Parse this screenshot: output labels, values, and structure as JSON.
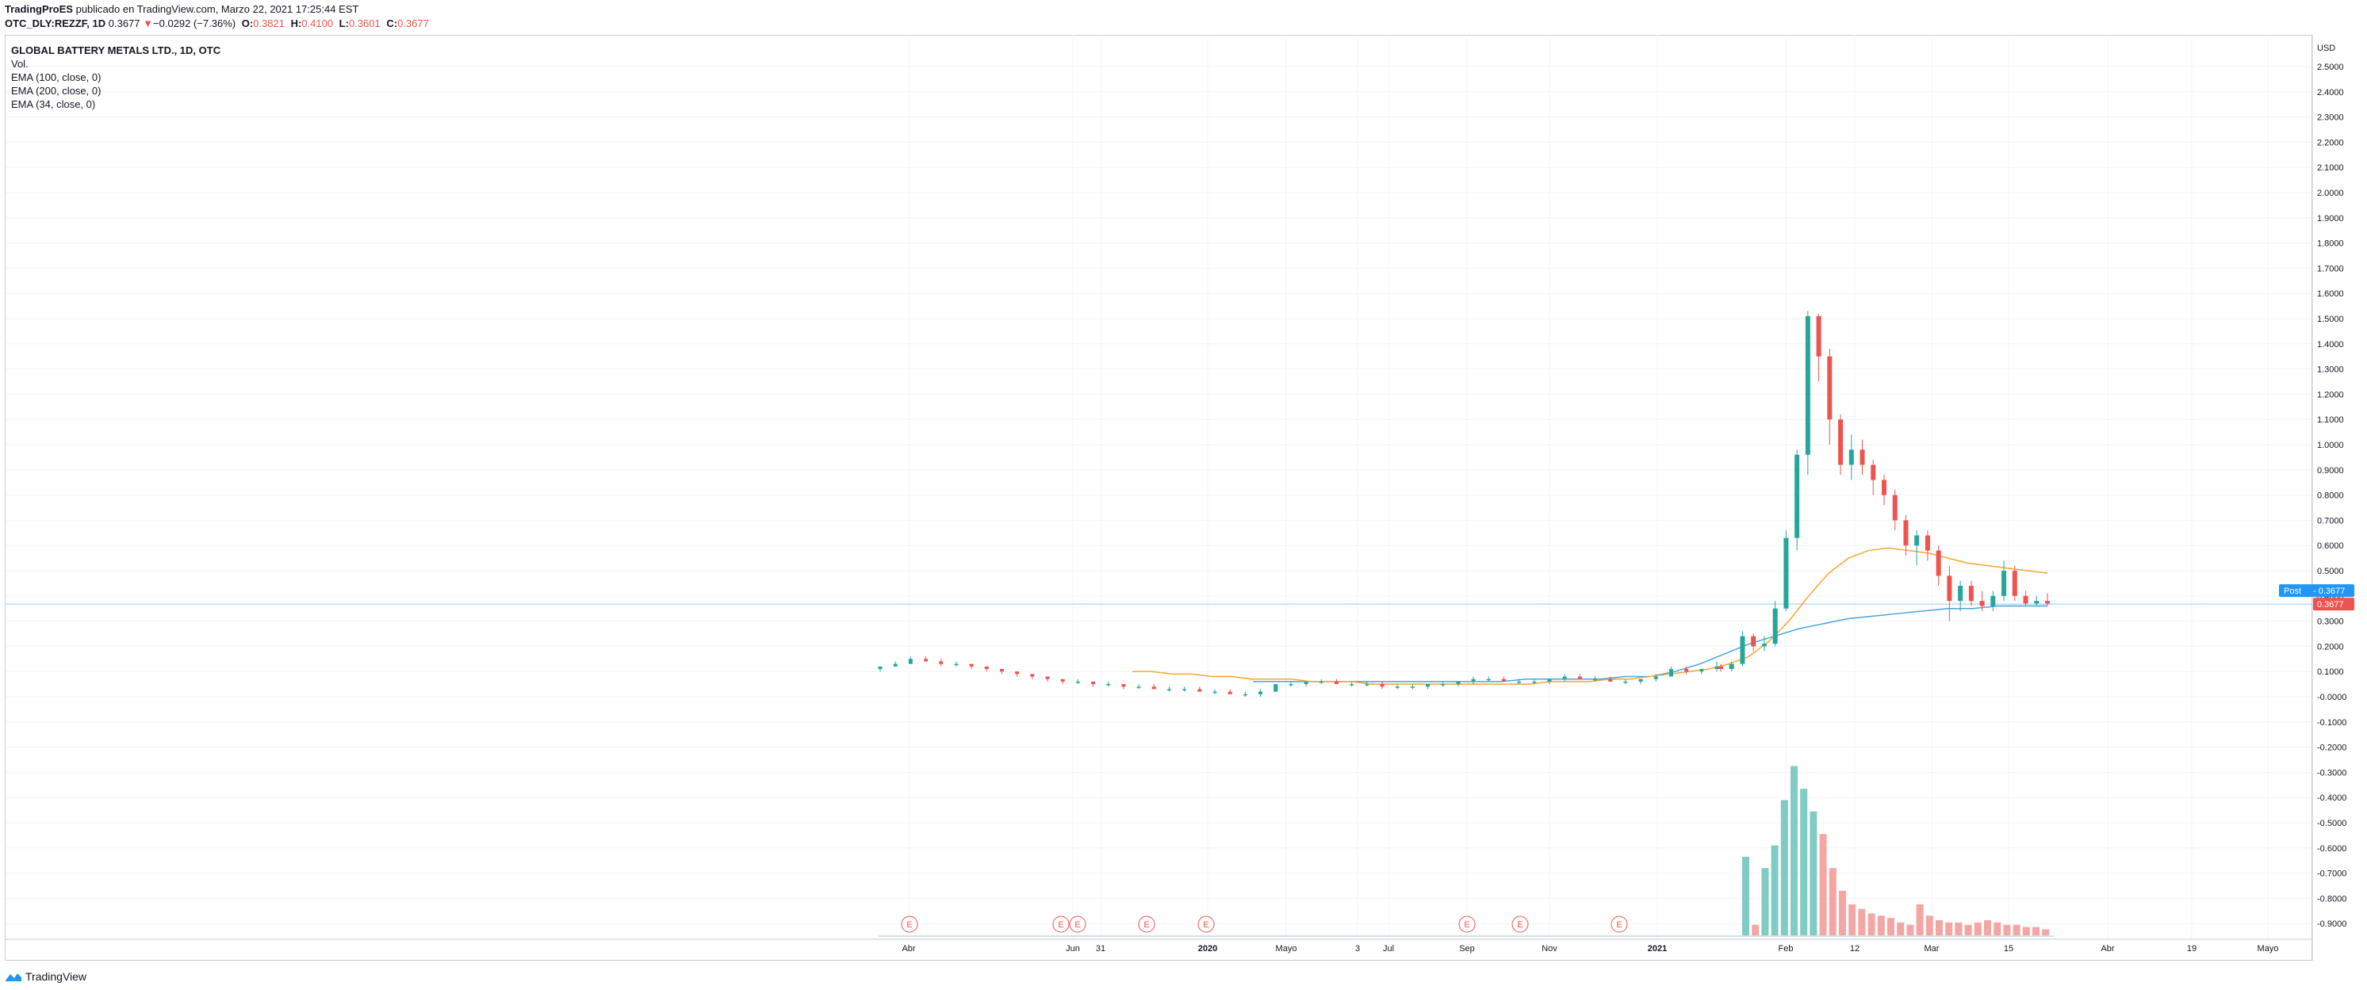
{
  "header": {
    "publisher": "TradingProES",
    "published_text": "publicado en TradingView.com, Marzo 22, 2021 17:25:44 EST",
    "symbol": "OTC_DLY:REZZF, 1D",
    "last": "0.3677",
    "change_arrow": "▼",
    "change": "−0.0292 (−7.36%)",
    "o_label": "O:",
    "o": "0.3821",
    "h_label": "H:",
    "h": "0.4100",
    "l_label": "L:",
    "l": "0.3601",
    "c_label": "C:",
    "c": "0.3677"
  },
  "legend": {
    "title": "GLOBAL BATTERY METALS LTD., 1D, OTC",
    "vol": "Vol.",
    "ema100": "EMA (100, close, 0)",
    "ema200": "EMA (200, close, 0)",
    "ema34": "EMA (34, close, 0)"
  },
  "footer": {
    "brand": "TradingView"
  },
  "colors": {
    "up": "#26a69a",
    "down": "#ef5350",
    "ema_orange": "#f7a531",
    "ema_blue": "#4aa3df",
    "badge_blue": "#2196f3"
  },
  "chart_data": {
    "type": "candlestick",
    "currency_label": "USD",
    "y_ticks": [
      "2.5000",
      "2.4000",
      "2.3000",
      "2.2000",
      "2.1000",
      "2.0000",
      "1.9000",
      "1.8000",
      "1.7000",
      "1.6000",
      "1.5000",
      "1.4000",
      "1.3000",
      "1.2000",
      "1.1000",
      "1.0000",
      "0.9000",
      "0.8000",
      "0.7000",
      "0.6000",
      "0.5000",
      "0.4000",
      "0.3000",
      "0.2000",
      "0.1000",
      "-0.0000",
      "-0.1000",
      "-0.2000",
      "-0.3000",
      "-0.4000",
      "-0.5000",
      "-0.6000",
      "-0.7000",
      "-0.8000",
      "-0.9000"
    ],
    "x_ticks": [
      "Abr",
      "Jun",
      "31",
      "2020",
      "Mayo",
      "3",
      "Jul",
      "Sep",
      "Nov",
      "2021",
      "Feb",
      "12",
      "Mar",
      "15",
      "Abr",
      "19",
      "Mayo"
    ],
    "bold_x_ticks": [
      "2020",
      "2021"
    ],
    "price_labels": {
      "post_label": "Post",
      "post_value": "0.3677",
      "last_value": "0.3677"
    },
    "earnings_marker": "E",
    "earnings_count": 8,
    "candles": [
      [
        0.11,
        0.12,
        0.1,
        0.12
      ],
      [
        0.12,
        0.14,
        0.12,
        0.13
      ],
      [
        0.13,
        0.16,
        0.13,
        0.15
      ],
      [
        0.15,
        0.16,
        0.14,
        0.14
      ],
      [
        0.14,
        0.15,
        0.12,
        0.13
      ],
      [
        0.13,
        0.14,
        0.12,
        0.13
      ],
      [
        0.13,
        0.13,
        0.11,
        0.12
      ],
      [
        0.12,
        0.12,
        0.1,
        0.11
      ],
      [
        0.11,
        0.11,
        0.09,
        0.1
      ],
      [
        0.1,
        0.1,
        0.08,
        0.09
      ],
      [
        0.09,
        0.09,
        0.07,
        0.08
      ],
      [
        0.08,
        0.08,
        0.06,
        0.07
      ],
      [
        0.07,
        0.07,
        0.05,
        0.06
      ],
      [
        0.06,
        0.07,
        0.05,
        0.06
      ],
      [
        0.06,
        0.06,
        0.04,
        0.05
      ],
      [
        0.05,
        0.06,
        0.04,
        0.05
      ],
      [
        0.05,
        0.05,
        0.03,
        0.04
      ],
      [
        0.04,
        0.05,
        0.03,
        0.04
      ],
      [
        0.04,
        0.05,
        0.03,
        0.03
      ],
      [
        0.03,
        0.04,
        0.02,
        0.03
      ],
      [
        0.03,
        0.04,
        0.02,
        0.03
      ],
      [
        0.03,
        0.04,
        0.02,
        0.02
      ],
      [
        0.02,
        0.03,
        0.01,
        0.02
      ],
      [
        0.02,
        0.03,
        0.01,
        0.01
      ],
      [
        0.01,
        0.02,
        0.0,
        0.01
      ],
      [
        0.01,
        0.03,
        0.0,
        0.02
      ],
      [
        0.02,
        0.05,
        0.02,
        0.05
      ],
      [
        0.05,
        0.06,
        0.04,
        0.05
      ],
      [
        0.05,
        0.06,
        0.04,
        0.06
      ],
      [
        0.06,
        0.07,
        0.05,
        0.06
      ],
      [
        0.06,
        0.07,
        0.05,
        0.05
      ],
      [
        0.05,
        0.06,
        0.04,
        0.05
      ],
      [
        0.05,
        0.06,
        0.04,
        0.05
      ],
      [
        0.05,
        0.06,
        0.03,
        0.04
      ],
      [
        0.04,
        0.05,
        0.03,
        0.04
      ],
      [
        0.04,
        0.05,
        0.03,
        0.04
      ],
      [
        0.04,
        0.05,
        0.03,
        0.05
      ],
      [
        0.05,
        0.06,
        0.04,
        0.05
      ],
      [
        0.05,
        0.06,
        0.04,
        0.06
      ],
      [
        0.06,
        0.08,
        0.05,
        0.07
      ],
      [
        0.07,
        0.08,
        0.06,
        0.07
      ],
      [
        0.07,
        0.08,
        0.06,
        0.06
      ],
      [
        0.06,
        0.07,
        0.05,
        0.06
      ],
      [
        0.06,
        0.07,
        0.05,
        0.06
      ],
      [
        0.06,
        0.07,
        0.05,
        0.07
      ],
      [
        0.07,
        0.09,
        0.06,
        0.08
      ],
      [
        0.08,
        0.09,
        0.07,
        0.07
      ],
      [
        0.07,
        0.08,
        0.06,
        0.07
      ],
      [
        0.07,
        0.08,
        0.06,
        0.06
      ],
      [
        0.06,
        0.07,
        0.05,
        0.06
      ],
      [
        0.06,
        0.07,
        0.05,
        0.07
      ],
      [
        0.07,
        0.09,
        0.06,
        0.08
      ],
      [
        0.08,
        0.12,
        0.08,
        0.11
      ],
      [
        0.11,
        0.12,
        0.09,
        0.1
      ],
      [
        0.1,
        0.11,
        0.09,
        0.11
      ],
      [
        0.11,
        0.14,
        0.1,
        0.12
      ],
      [
        0.12,
        0.13,
        0.1,
        0.11
      ],
      [
        0.11,
        0.14,
        0.1,
        0.13
      ],
      [
        0.13,
        0.26,
        0.12,
        0.24
      ],
      [
        0.24,
        0.25,
        0.18,
        0.2
      ],
      [
        0.2,
        0.24,
        0.18,
        0.21
      ],
      [
        0.21,
        0.38,
        0.2,
        0.35
      ],
      [
        0.35,
        0.66,
        0.34,
        0.63
      ],
      [
        0.63,
        0.98,
        0.58,
        0.96
      ],
      [
        0.96,
        1.53,
        0.88,
        1.51
      ],
      [
        1.51,
        1.52,
        1.25,
        1.35
      ],
      [
        1.35,
        1.38,
        1.0,
        1.1
      ],
      [
        1.1,
        1.12,
        0.88,
        0.92
      ],
      [
        0.92,
        1.04,
        0.86,
        0.98
      ],
      [
        0.98,
        1.02,
        0.88,
        0.92
      ],
      [
        0.92,
        0.94,
        0.8,
        0.86
      ],
      [
        0.86,
        0.88,
        0.76,
        0.8
      ],
      [
        0.8,
        0.82,
        0.66,
        0.7
      ],
      [
        0.7,
        0.72,
        0.56,
        0.6
      ],
      [
        0.6,
        0.66,
        0.52,
        0.64
      ],
      [
        0.64,
        0.66,
        0.54,
        0.58
      ],
      [
        0.58,
        0.6,
        0.44,
        0.48
      ],
      [
        0.48,
        0.52,
        0.3,
        0.38
      ],
      [
        0.38,
        0.46,
        0.34,
        0.44
      ],
      [
        0.44,
        0.46,
        0.36,
        0.38
      ],
      [
        0.38,
        0.42,
        0.34,
        0.36
      ],
      [
        0.36,
        0.42,
        0.34,
        0.4
      ],
      [
        0.4,
        0.54,
        0.38,
        0.5
      ],
      [
        0.5,
        0.52,
        0.38,
        0.4
      ],
      [
        0.4,
        0.42,
        0.36,
        0.37
      ],
      [
        0.37,
        0.4,
        0.36,
        0.38
      ],
      [
        0.38,
        0.41,
        0.36,
        0.37
      ]
    ],
    "ema34": [
      0.1,
      0.1,
      0.09,
      0.09,
      0.08,
      0.08,
      0.07,
      0.07,
      0.07,
      0.06,
      0.06,
      0.06,
      0.05,
      0.05,
      0.05,
      0.05,
      0.05,
      0.05,
      0.05,
      0.05,
      0.05,
      0.06,
      0.06,
      0.06,
      0.07,
      0.07,
      0.08,
      0.09,
      0.1,
      0.11,
      0.13,
      0.16,
      0.22,
      0.3,
      0.4,
      0.49,
      0.55,
      0.58,
      0.59,
      0.58,
      0.57,
      0.55,
      0.53,
      0.52,
      0.51,
      0.5,
      0.49
    ],
    "ema200": [
      0.06,
      0.06,
      0.06,
      0.06,
      0.06,
      0.06,
      0.06,
      0.06,
      0.06,
      0.06,
      0.06,
      0.07,
      0.07,
      0.07,
      0.07,
      0.08,
      0.08,
      0.1,
      0.13,
      0.17,
      0.21,
      0.24,
      0.27,
      0.29,
      0.31,
      0.32,
      0.33,
      0.34,
      0.35,
      0.35,
      0.36,
      0.36,
      0.36
    ],
    "volume": [
      0.35,
      0.05,
      0.3,
      0.4,
      0.6,
      0.75,
      0.65,
      0.55,
      0.45,
      0.3,
      0.2,
      0.14,
      0.12,
      0.1,
      0.09,
      0.08,
      0.06,
      0.05,
      0.14,
      0.09,
      0.07,
      0.06,
      0.06,
      0.05,
      0.06,
      0.07,
      0.06,
      0.05,
      0.05,
      0.04,
      0.04,
      0.03
    ]
  }
}
